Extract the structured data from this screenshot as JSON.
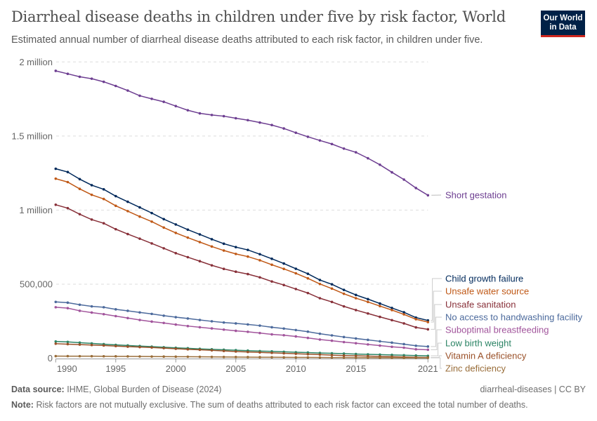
{
  "header": {
    "title": "Diarrheal disease deaths in children under five by risk factor, World",
    "subtitle": "Estimated annual number of diarrheal disease deaths attributed to each risk factor, in children under five.",
    "logo": "Our World in Data"
  },
  "footer": {
    "source_label": "Data source:",
    "source": "IHME, Global Burden of Disease (2024)",
    "slug": "diarrheal-diseases | CC BY",
    "note_label": "Note:",
    "note": "Risk factors are not mutually exclusive. The sum of deaths attributed to each risk factor can exceed the total number of deaths."
  },
  "chart_data": {
    "type": "line",
    "title": "",
    "xlabel": "",
    "ylabel": "",
    "xlim": [
      1990,
      2021
    ],
    "ylim": [
      0,
      2000000
    ],
    "grid": "horizontal dashed",
    "legend": "right (line-end labels)",
    "y_ticks": [
      {
        "value": 0,
        "label": "0"
      },
      {
        "value": 500000,
        "label": "500,000"
      },
      {
        "value": 1000000,
        "label": "1 million"
      },
      {
        "value": 1500000,
        "label": "1.5 million"
      },
      {
        "value": 2000000,
        "label": "2 million"
      }
    ],
    "x_ticks": [
      1990,
      1995,
      2000,
      2005,
      2010,
      2015,
      2021
    ],
    "x": [
      1990,
      1991,
      1992,
      1993,
      1994,
      1995,
      1996,
      1997,
      1998,
      1999,
      2000,
      2001,
      2002,
      2003,
      2004,
      2005,
      2006,
      2007,
      2008,
      2009,
      2010,
      2011,
      2012,
      2013,
      2014,
      2015,
      2016,
      2017,
      2018,
      2019,
      2020,
      2021
    ],
    "series": [
      {
        "name": "Short gestation",
        "color": "#6d3e91",
        "values": [
          1940000,
          1920000,
          1900000,
          1887000,
          1866000,
          1838000,
          1807000,
          1772000,
          1751000,
          1731000,
          1702000,
          1674000,
          1653000,
          1642000,
          1634000,
          1620000,
          1607000,
          1591000,
          1574000,
          1551000,
          1522000,
          1495000,
          1470000,
          1446000,
          1415000,
          1390000,
          1350000,
          1306000,
          1255000,
          1206000,
          1149000,
          1100000
        ]
      },
      {
        "name": "Child growth failure",
        "color": "#00295b",
        "values": [
          1279000,
          1257000,
          1209000,
          1168000,
          1140000,
          1094000,
          1056000,
          1018000,
          980000,
          939000,
          903000,
          868000,
          836000,
          803000,
          773000,
          750000,
          731000,
          702000,
          671000,
          639000,
          604000,
          570000,
          528000,
          499000,
          461000,
          427000,
          399000,
          369000,
          339000,
          310000,
          274000,
          255000
        ]
      },
      {
        "name": "Unsafe water source",
        "color": "#c05917",
        "values": [
          1212000,
          1189000,
          1143000,
          1103000,
          1075000,
          1029000,
          993000,
          956000,
          922000,
          882000,
          846000,
          814000,
          784000,
          754000,
          727000,
          704000,
          686000,
          661000,
          631000,
          603000,
          573000,
          539000,
          501000,
          470000,
          435000,
          405000,
          380000,
          352000,
          325000,
          296000,
          263000,
          244000
        ]
      },
      {
        "name": "Unsafe sanitation",
        "color": "#883039",
        "values": [
          1036000,
          1013000,
          972000,
          936000,
          911000,
          871000,
          838000,
          807000,
          775000,
          742000,
          709000,
          682000,
          655000,
          627000,
          603000,
          584000,
          568000,
          546000,
          518000,
          494000,
          467000,
          440000,
          405000,
          380000,
          350000,
          325000,
          302000,
          279000,
          257000,
          235000,
          208000,
          195000
        ]
      },
      {
        "name": "No access to handwashing facility",
        "color": "#4c6a9c",
        "values": [
          380000,
          375000,
          361000,
          350000,
          344000,
          330000,
          320000,
          309000,
          299000,
          287000,
          277000,
          268000,
          258000,
          249000,
          241000,
          235000,
          228000,
          220000,
          209000,
          200000,
          190000,
          179000,
          165000,
          154000,
          143000,
          133000,
          124000,
          114000,
          105000,
          95000,
          84000,
          79000
        ]
      },
      {
        "name": "Suboptimal breastfeeding",
        "color": "#a2559c",
        "values": [
          344000,
          338000,
          320000,
          308000,
          297000,
          284000,
          271000,
          258000,
          247000,
          238000,
          227000,
          217000,
          209000,
          201000,
          193000,
          185000,
          178000,
          170000,
          161000,
          155000,
          147000,
          137000,
          126000,
          118000,
          109000,
          101000,
          93000,
          85000,
          77000,
          71000,
          60000,
          57000
        ]
      },
      {
        "name": "Low birth weight",
        "color": "#2c8465",
        "values": [
          113000,
          110000,
          105000,
          100000,
          95000,
          90000,
          86000,
          82000,
          78000,
          74000,
          70000,
          67000,
          63000,
          60000,
          57000,
          54000,
          51000,
          48000,
          46000,
          43000,
          40000,
          38000,
          35000,
          33000,
          31000,
          28000,
          26000,
          24000,
          22000,
          20000,
          18000,
          16000
        ]
      },
      {
        "name": "Vitamin A deficiency",
        "color": "#9a5129",
        "values": [
          98000,
          95000,
          92000,
          89000,
          86000,
          82000,
          78000,
          75000,
          72000,
          68000,
          64000,
          60000,
          57000,
          53000,
          49000,
          45000,
          42000,
          39000,
          36000,
          33000,
          30000,
          27000,
          24000,
          21000,
          18000,
          16000,
          14000,
          12000,
          10000,
          8000,
          6000,
          5000
        ]
      },
      {
        "name": "Zinc deficiency",
        "color": "#996d39",
        "values": [
          14000,
          13800,
          13600,
          13400,
          13000,
          12600,
          12200,
          11800,
          11300,
          10800,
          10300,
          9800,
          9300,
          8800,
          8300,
          7800,
          7300,
          6800,
          6300,
          5900,
          5500,
          5100,
          4700,
          4300,
          4000,
          3700,
          3400,
          3100,
          2800,
          2500,
          2300,
          2100
        ]
      }
    ]
  }
}
